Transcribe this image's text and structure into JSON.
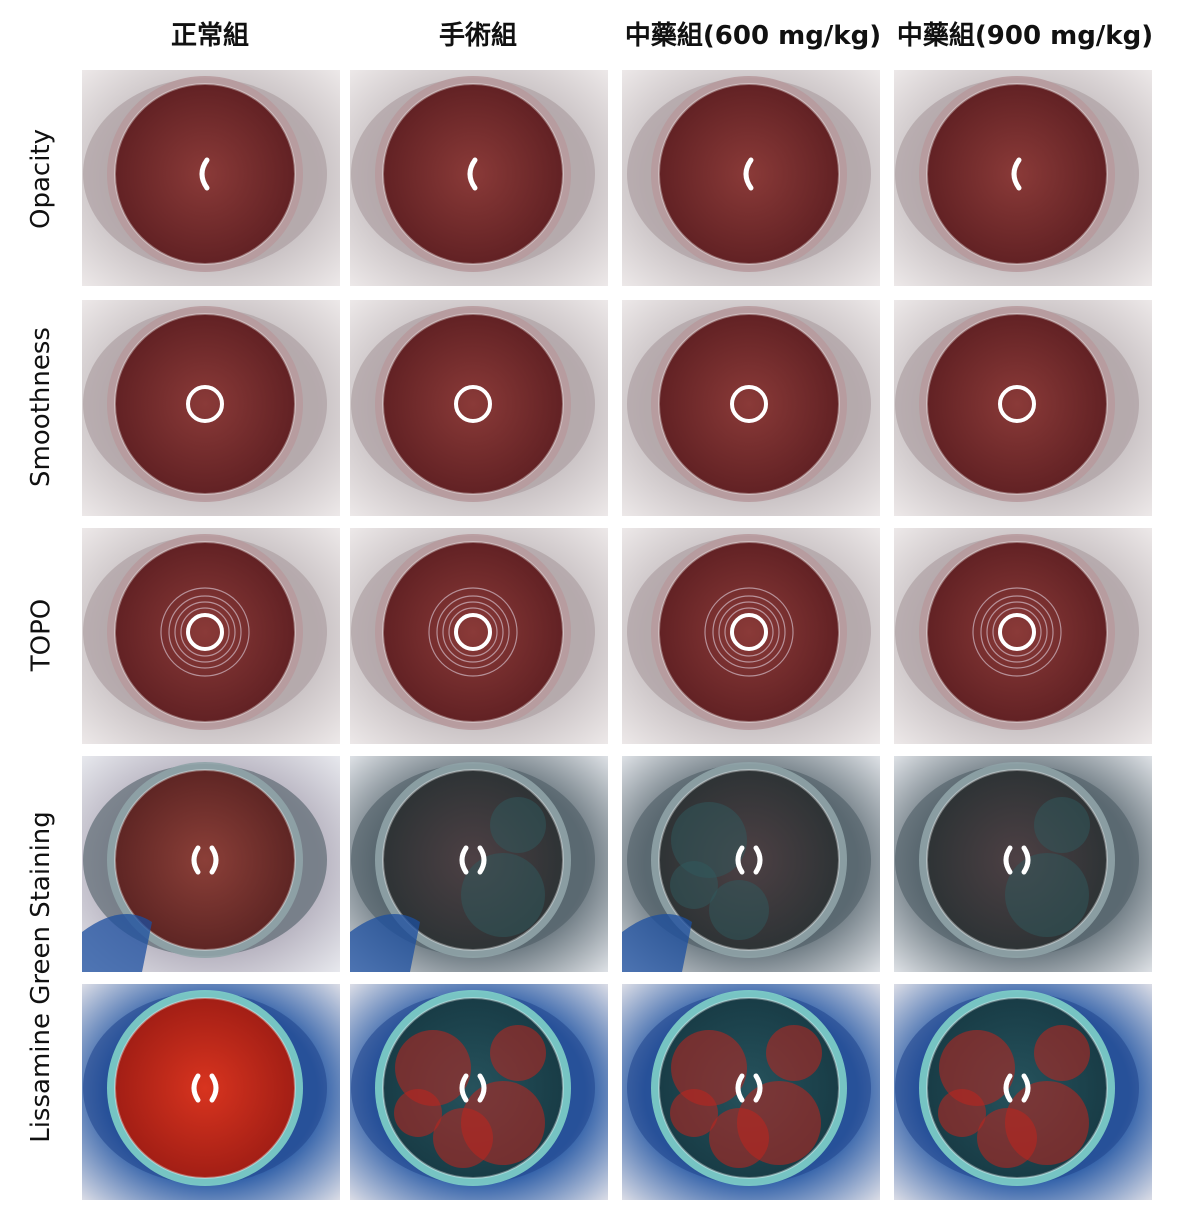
{
  "columns": [
    {
      "label": "正常組"
    },
    {
      "label": "手術組"
    },
    {
      "label": "中藥組(600 mg/kg)"
    },
    {
      "label": "中藥組(900 mg/kg)"
    }
  ],
  "rows": [
    {
      "label": "Opacity",
      "type": "plain",
      "reflex": "arc"
    },
    {
      "label": "Smoothness",
      "type": "plain",
      "reflex": "ring"
    },
    {
      "label": "TOPO",
      "type": "plain",
      "reflex": "topo"
    },
    {
      "label": "",
      "type": "stain",
      "reflex": "brackets"
    },
    {
      "label": "",
      "type": "filtered",
      "reflex": "brackets"
    }
  ],
  "spanning_label": "Lissamine Green Staining",
  "colors": {
    "iris": "#8a3a38",
    "iris_dark": "#5e1f22",
    "fur": "#e9e4e4",
    "stain_blue": "#1c4fa0",
    "stain_teal": "#2f5a5e",
    "filter_red": "#c0241d",
    "filter_teal": "#1f4f5a"
  }
}
